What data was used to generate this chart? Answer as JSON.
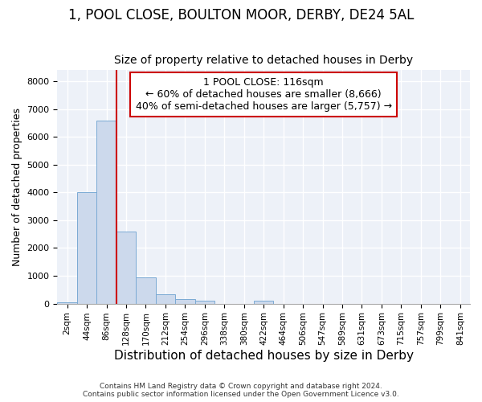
{
  "title1": "1, POOL CLOSE, BOULTON MOOR, DERBY, DE24 5AL",
  "title2": "Size of property relative to detached houses in Derby",
  "xlabel": "Distribution of detached houses by size in Derby",
  "ylabel": "Number of detached properties",
  "bin_labels": [
    "2sqm",
    "44sqm",
    "86sqm",
    "128sqm",
    "170sqm",
    "212sqm",
    "254sqm",
    "296sqm",
    "338sqm",
    "380sqm",
    "422sqm",
    "464sqm",
    "506sqm",
    "547sqm",
    "589sqm",
    "631sqm",
    "673sqm",
    "715sqm",
    "757sqm",
    "799sqm",
    "841sqm"
  ],
  "bar_heights": [
    50,
    4000,
    6600,
    2600,
    950,
    330,
    150,
    100,
    0,
    0,
    100,
    0,
    0,
    0,
    0,
    0,
    0,
    0,
    0,
    0,
    0
  ],
  "bar_color": "#ccd9ec",
  "bar_edgecolor": "#7aaad4",
  "vline_color": "#cc0000",
  "annotation_text": "1 POOL CLOSE: 116sqm\n← 60% of detached houses are smaller (8,666)\n40% of semi-detached houses are larger (5,757) →",
  "annotation_box_color": "#ffffff",
  "annotation_box_edgecolor": "#cc0000",
  "ylim": [
    0,
    8400
  ],
  "yticks": [
    0,
    1000,
    2000,
    3000,
    4000,
    5000,
    6000,
    7000,
    8000
  ],
  "background_color": "#edf1f8",
  "grid_color": "#ffffff",
  "footer": "Contains HM Land Registry data © Crown copyright and database right 2024.\nContains public sector information licensed under the Open Government Licence v3.0.",
  "title1_fontsize": 12,
  "title2_fontsize": 10,
  "xlabel_fontsize": 11,
  "ylabel_fontsize": 9,
  "annot_fontsize": 9
}
